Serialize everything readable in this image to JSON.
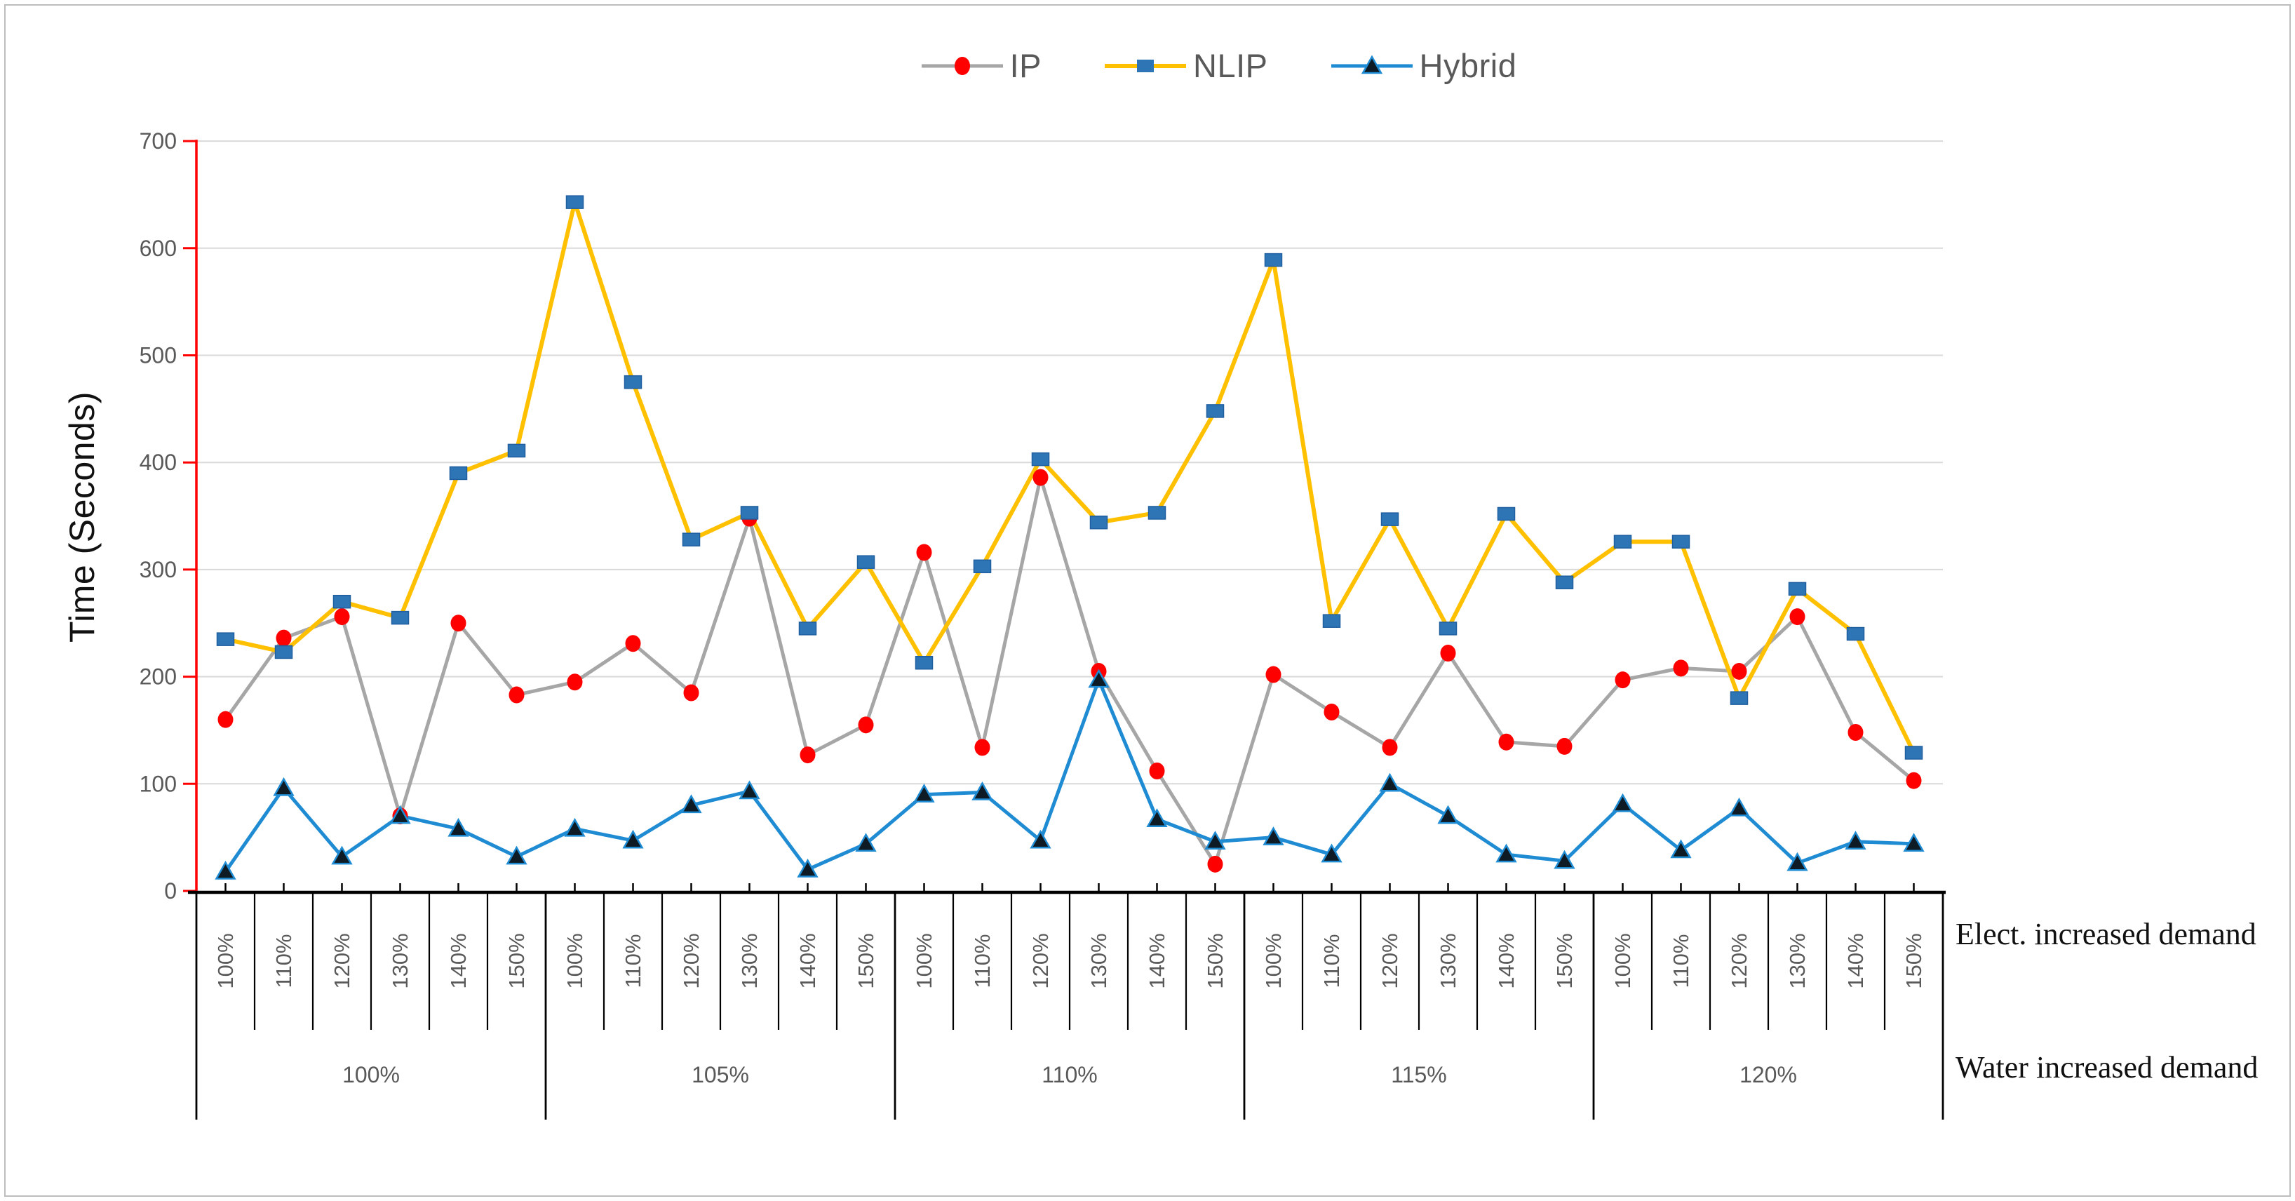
{
  "figure": {
    "y_axis_title": "Time (Seconds)",
    "right_labels": {
      "row1": "Elect. increased demand",
      "row2": "Water increased demand"
    }
  },
  "legend": {
    "items": [
      {
        "label": "IP"
      },
      {
        "label": "NLIP"
      },
      {
        "label": "Hybrid"
      }
    ]
  },
  "chart_data": {
    "type": "line",
    "title": "",
    "xlabel": "",
    "ylabel": "Time (Seconds)",
    "ylim": [
      0,
      700
    ],
    "yticks": [
      0,
      100,
      200,
      300,
      400,
      500,
      600,
      700
    ],
    "grid": true,
    "legend_position": "top-center",
    "x_structure": {
      "elect_labels_per_group": [
        "100%",
        "110%",
        "120%",
        "130%",
        "140%",
        "150%"
      ],
      "water_groups": [
        "100%",
        "105%",
        "110%",
        "115%",
        "120%"
      ],
      "row1_axis_label": "Elect. increased demand",
      "row2_axis_label": "Water increased demand"
    },
    "categories": [
      "100%",
      "110%",
      "120%",
      "130%",
      "140%",
      "150%",
      "100%",
      "110%",
      "120%",
      "130%",
      "140%",
      "150%",
      "100%",
      "110%",
      "120%",
      "130%",
      "140%",
      "150%",
      "100%",
      "110%",
      "120%",
      "130%",
      "140%",
      "150%",
      "100%",
      "110%",
      "120%",
      "130%",
      "140%",
      "150%"
    ],
    "series": [
      {
        "name": "IP",
        "marker": "circle",
        "line_color": "#A6A6A6",
        "marker_color": "#FF0000",
        "values": [
          160,
          236,
          256,
          70,
          250,
          183,
          195,
          231,
          185,
          348,
          127,
          155,
          316,
          134,
          386,
          205,
          112,
          25,
          202,
          167,
          134,
          222,
          139,
          135,
          197,
          208,
          205,
          256,
          148,
          103
        ]
      },
      {
        "name": "NLIP",
        "marker": "square",
        "line_color": "#FFC000",
        "marker_color": "#2E75B6",
        "values": [
          235,
          223,
          270,
          255,
          390,
          411,
          643,
          475,
          328,
          353,
          245,
          307,
          213,
          303,
          403,
          344,
          353,
          448,
          589,
          252,
          347,
          245,
          352,
          288,
          326,
          326,
          180,
          282,
          240,
          129
        ]
      },
      {
        "name": "Hybrid",
        "marker": "triangle",
        "line_color": "#1E8BD3",
        "marker_color": "#0F1B24",
        "values": [
          18,
          96,
          32,
          70,
          58,
          32,
          58,
          47,
          80,
          93,
          20,
          44,
          90,
          92,
          47,
          197,
          67,
          46,
          50,
          34,
          100,
          70,
          34,
          28,
          81,
          38,
          77,
          26,
          46,
          44
        ]
      }
    ],
    "axis_colors": {
      "y_axis": "#FF0000",
      "x_axis": "#000000",
      "tick_labels": "#595959",
      "gridline": "#D9D9D9"
    }
  }
}
